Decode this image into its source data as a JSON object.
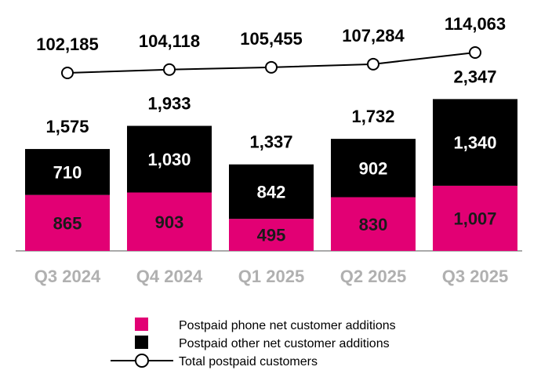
{
  "chart_data": {
    "type": "bar",
    "stacked": true,
    "categories": [
      "Q3 2024",
      "Q4 2024",
      "Q1 2025",
      "Q2 2025",
      "Q3 2025"
    ],
    "series": [
      {
        "name": "Postpaid phone net customer additions",
        "values": [
          865,
          903,
          495,
          830,
          1007
        ],
        "labels": [
          "865",
          "903",
          "495",
          "830",
          "1,007"
        ],
        "color": "#E20074"
      },
      {
        "name": "Postpaid other net customer additions",
        "values": [
          710,
          1030,
          842,
          902,
          1340
        ],
        "labels": [
          "710",
          "1,030",
          "842",
          "902",
          "1,340"
        ],
        "color": "#000000"
      }
    ],
    "totals": {
      "values": [
        1575,
        1933,
        1337,
        1732,
        2347
      ],
      "labels": [
        "1,575",
        "1,933",
        "1,337",
        "1,732",
        "2,347"
      ]
    },
    "line_series": {
      "name": "Total postpaid customers",
      "type": "line",
      "values": [
        102185,
        104118,
        105455,
        107284,
        114063
      ],
      "labels": [
        "102,185",
        "104,118",
        "105,455",
        "107,284",
        "114,063"
      ],
      "color": "#000000"
    },
    "axis_label_color": "#B0B0B0",
    "legend": "bottom",
    "grid": false
  }
}
